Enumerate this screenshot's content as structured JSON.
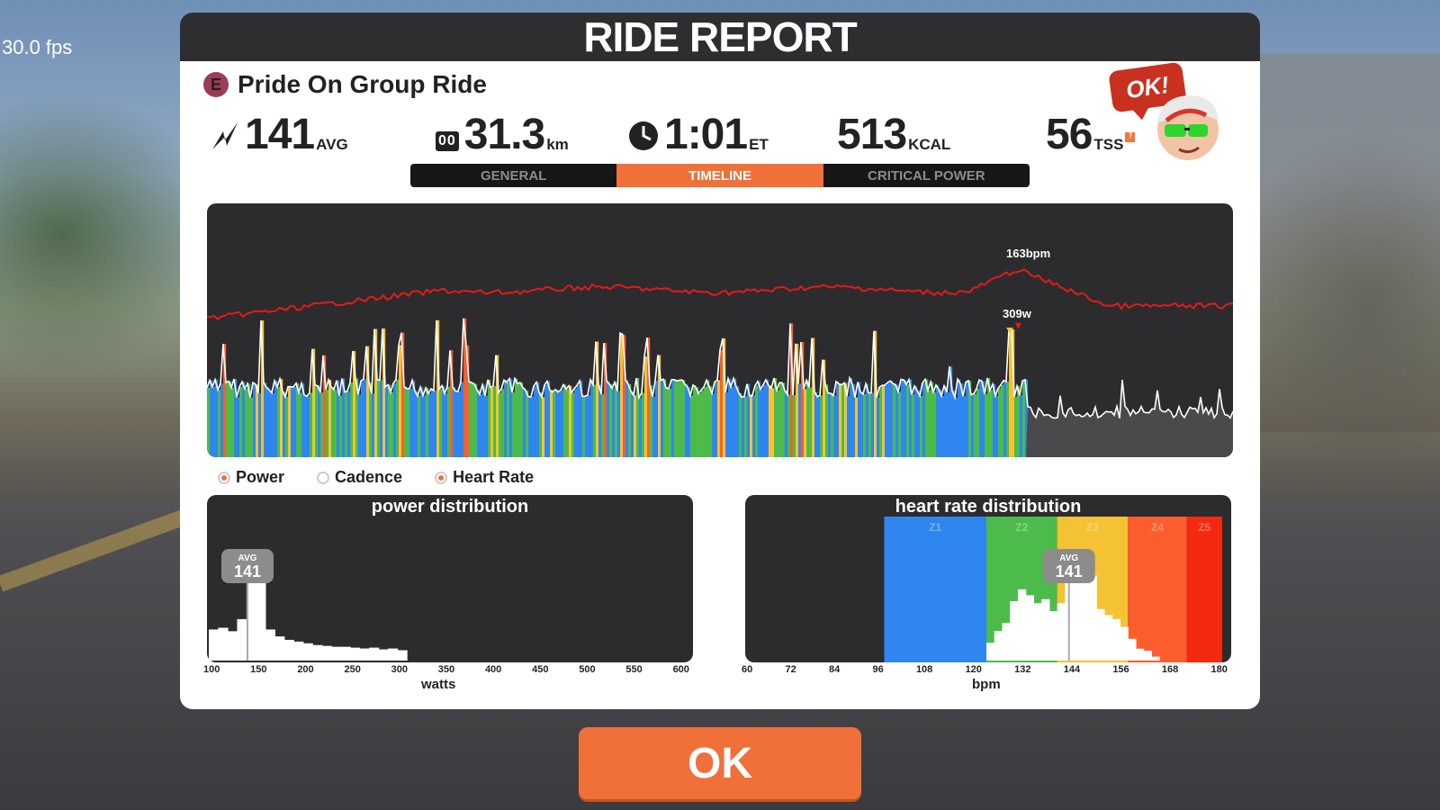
{
  "fps": "30.0 fps",
  "title": "RIDE REPORT",
  "ride": {
    "category": "E",
    "name": "Pride On Group Ride"
  },
  "stats": {
    "power": {
      "value": "141",
      "unit": "AVG"
    },
    "distance": {
      "odometer": "00",
      "value": "31.3",
      "unit": "km"
    },
    "time": {
      "value": "1:01",
      "unit": "ET"
    },
    "calories": {
      "value": "513",
      "unit": "KCAL"
    },
    "tss": {
      "value": "56",
      "unit": "TSS",
      "info": "?"
    }
  },
  "mascot": {
    "bubble": "OK!"
  },
  "tabs": [
    {
      "label": "GENERAL",
      "active": false
    },
    {
      "label": "TIMELINE",
      "active": true
    },
    {
      "label": "CRITICAL POWER",
      "active": false
    }
  ],
  "timeline": {
    "hr_peak_label": "163bpm",
    "power_peak_label": "309w"
  },
  "legend": [
    {
      "label": "Power",
      "on": true
    },
    {
      "label": "Cadence",
      "on": false
    },
    {
      "label": "Heart Rate",
      "on": true
    }
  ],
  "power_distribution": {
    "title": "power distribution",
    "xlabel": "watts",
    "ticks": [
      "100",
      "150",
      "200",
      "250",
      "300",
      "350",
      "400",
      "450",
      "500",
      "550",
      "600"
    ],
    "avg_label": "AVG",
    "avg_value": "141"
  },
  "hr_distribution": {
    "title": "heart rate distribution",
    "xlabel": "bpm",
    "ticks": [
      "60",
      "72",
      "84",
      "96",
      "108",
      "120",
      "132",
      "144",
      "156",
      "168",
      "180"
    ],
    "avg_label": "AVG",
    "avg_value": "141",
    "zones": [
      "Z1",
      "Z2",
      "Z3",
      "Z4",
      "Z5"
    ]
  },
  "colors": {
    "accent": "#f0703a",
    "hr_line": "#e21b1b",
    "z1": "#2f86f0",
    "z2": "#4cbb4a",
    "z3": "#f4c232",
    "z4": "#fb5e2c",
    "z5": "#f5290f"
  },
  "chart_data": [
    {
      "type": "area",
      "title": "power distribution",
      "xlabel": "watts",
      "xlim": [
        100,
        600
      ],
      "x": [
        105,
        115,
        125,
        135,
        145,
        155,
        165,
        175,
        185,
        195,
        205,
        215,
        225,
        235,
        245,
        255,
        265,
        275,
        285,
        295,
        305
      ],
      "values": [
        36,
        38,
        34,
        48,
        98,
        100,
        36,
        28,
        24,
        22,
        20,
        18,
        17,
        16,
        16,
        15,
        14,
        15,
        13,
        14,
        12
      ],
      "avg": 141
    },
    {
      "type": "area",
      "title": "heart rate distribution",
      "xlabel": "bpm",
      "xlim": [
        60,
        180
      ],
      "x": [
        121,
        123,
        125,
        127,
        129,
        131,
        133,
        135,
        137,
        139,
        141,
        143,
        145,
        147,
        149,
        151,
        153,
        155,
        157,
        159,
        161,
        163
      ],
      "values": [
        18,
        30,
        38,
        60,
        72,
        66,
        58,
        62,
        50,
        58,
        80,
        86,
        94,
        86,
        52,
        46,
        42,
        34,
        22,
        12,
        10,
        4
      ],
      "zones": [
        {
          "name": "Z1",
          "from": 94,
          "to": 120
        },
        {
          "name": "Z2",
          "from": 120,
          "to": 138
        },
        {
          "name": "Z3",
          "from": 138,
          "to": 156
        },
        {
          "name": "Z4",
          "from": 156,
          "to": 171
        },
        {
          "name": "Z5",
          "from": 171,
          "to": 180
        }
      ],
      "avg": 141
    }
  ]
}
